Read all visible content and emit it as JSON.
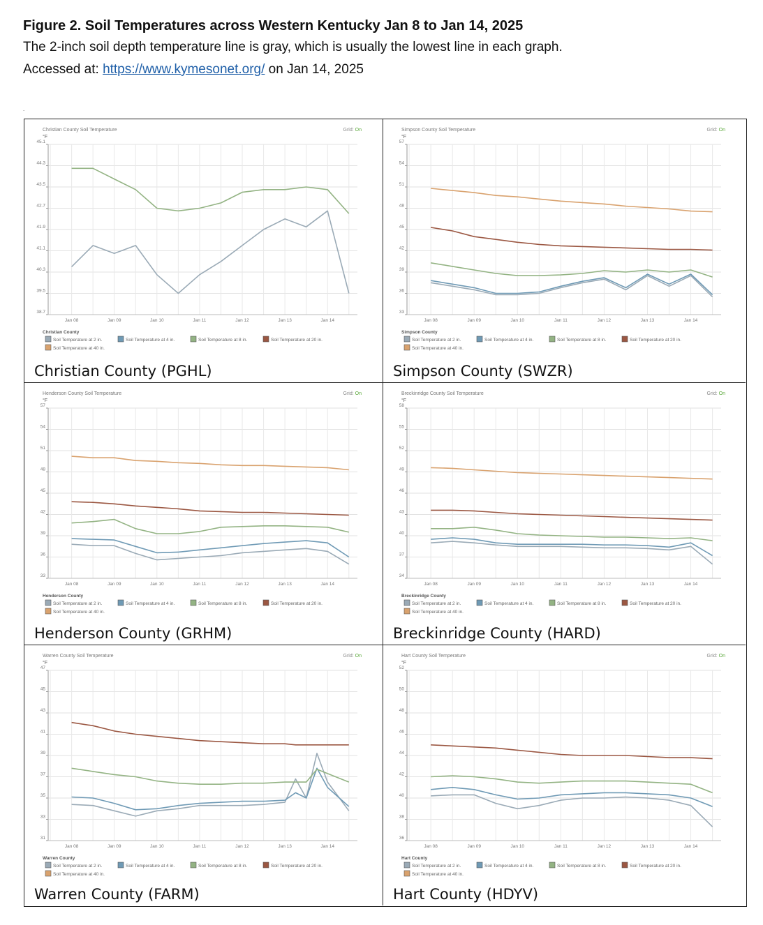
{
  "header": {
    "title": "Figure 2. Soil Temperatures across Western Kentucky Jan 8 to Jan 14, 2025",
    "description": "The 2-inch soil depth temperature line is gray, which is usually the lowest line in each graph.",
    "accessed_prefix": "Accessed at: ",
    "accessed_link": "https://www.kymesonet.org/",
    "accessed_suffix": " on Jan 14, 2025"
  },
  "stray_mark": ".",
  "legend_labels": [
    "Soil Temperature at 2 in.",
    "Soil Temperature at 4 in.",
    "Soil Temperature at 8 in.",
    "Soil Temperature at 20 in.",
    "Soil Temperature at 40 in."
  ],
  "series_colors": {
    "s2": "#9aaab6",
    "s4": "#6f9ab5",
    "s8": "#93b383",
    "s20": "#9b5742",
    "s40": "#d9a26e"
  },
  "grid_toggle": {
    "label": "Grid: ",
    "value": "On"
  },
  "unit_label": "°F",
  "x_ticks": [
    "Jan 08",
    "Jan 09",
    "Jan 10",
    "Jan 11",
    "Jan 12",
    "Jan 13",
    "Jan 14"
  ],
  "chart_data": [
    {
      "type": "line",
      "title": "Christian County Soil Temperature",
      "legend_title": "Christian County",
      "caption": "Christian County (PGHL)",
      "ylabel": "°F",
      "ylim": [
        38.7,
        45.1
      ],
      "yticks": [
        "45.1",
        "44.3",
        "43.5",
        "42.7",
        "41.9",
        "41.1",
        "40.3",
        "39.5",
        "38.7"
      ],
      "x": [
        0,
        0.5,
        1,
        1.5,
        2,
        2.5,
        3,
        3.5,
        4,
        4.5,
        5,
        5.5,
        6,
        6.5
      ],
      "series": [
        {
          "name": "Soil Temperature at 2 in.",
          "color_key": "s2",
          "values": [
            40.5,
            41.3,
            41.0,
            41.3,
            40.2,
            39.5,
            40.2,
            40.7,
            41.3,
            41.9,
            42.3,
            42.0,
            42.6,
            39.5
          ]
        },
        {
          "name": "Soil Temperature at 8 in.",
          "color_key": "s8",
          "values": [
            44.2,
            44.2,
            43.8,
            43.4,
            42.7,
            42.6,
            42.7,
            42.9,
            43.3,
            43.4,
            43.4,
            43.5,
            43.4,
            42.5
          ]
        }
      ]
    },
    {
      "type": "line",
      "title": "Simpson County Soil Temperature",
      "legend_title": "Simpson County",
      "caption": "Simpson County (SWZR)",
      "ylabel": "°F",
      "ylim": [
        33,
        57
      ],
      "yticks": [
        "57",
        "54",
        "51",
        "48",
        "45",
        "42",
        "39",
        "36",
        "33"
      ],
      "x": [
        0,
        0.5,
        1,
        1.5,
        2,
        2.5,
        3,
        3.5,
        4,
        4.5,
        5,
        5.5,
        6,
        6.5
      ],
      "series": [
        {
          "name": "Soil Temperature at 2 in.",
          "color_key": "s2",
          "values": [
            37.5,
            37.0,
            36.5,
            35.8,
            35.8,
            36.0,
            36.8,
            37.5,
            38.0,
            36.5,
            38.5,
            37.0,
            38.5,
            35.5
          ]
        },
        {
          "name": "Soil Temperature at 4 in.",
          "color_key": "s4",
          "values": [
            37.8,
            37.3,
            36.8,
            36.0,
            36.0,
            36.2,
            37.0,
            37.7,
            38.2,
            36.8,
            38.7,
            37.3,
            38.7,
            35.8
          ]
        },
        {
          "name": "Soil Temperature at 8 in.",
          "color_key": "s8",
          "values": [
            40.3,
            39.8,
            39.3,
            38.8,
            38.5,
            38.5,
            38.6,
            38.8,
            39.2,
            39.0,
            39.3,
            39.0,
            39.3,
            38.3
          ]
        },
        {
          "name": "Soil Temperature at 20 in.",
          "color_key": "s20",
          "values": [
            45.3,
            44.8,
            44.0,
            43.6,
            43.2,
            42.9,
            42.7,
            42.6,
            42.5,
            42.4,
            42.3,
            42.2,
            42.2,
            42.1
          ]
        },
        {
          "name": "Soil Temperature at 40 in.",
          "color_key": "s40",
          "values": [
            50.8,
            50.5,
            50.2,
            49.8,
            49.6,
            49.3,
            49.0,
            48.8,
            48.6,
            48.3,
            48.1,
            47.9,
            47.6,
            47.5
          ]
        }
      ]
    },
    {
      "type": "line",
      "title": "Henderson County Soil Temperature",
      "legend_title": "Henderson County",
      "caption": "Henderson County (GRHM)",
      "ylabel": "°F",
      "ylim": [
        33,
        57
      ],
      "yticks": [
        "57",
        "54",
        "51",
        "48",
        "45",
        "42",
        "39",
        "36",
        "33"
      ],
      "x": [
        0,
        0.5,
        1,
        1.5,
        2,
        2.5,
        3,
        3.5,
        4,
        4.5,
        5,
        5.5,
        6,
        6.5
      ],
      "series": [
        {
          "name": "Soil Temperature at 2 in.",
          "color_key": "s2",
          "values": [
            37.8,
            37.6,
            37.6,
            36.5,
            35.6,
            35.8,
            36.0,
            36.2,
            36.6,
            36.8,
            37.0,
            37.2,
            36.8,
            35.0
          ]
        },
        {
          "name": "Soil Temperature at 4 in.",
          "color_key": "s4",
          "values": [
            38.6,
            38.5,
            38.4,
            37.5,
            36.6,
            36.7,
            37.0,
            37.3,
            37.6,
            37.9,
            38.1,
            38.3,
            38.0,
            36.0
          ]
        },
        {
          "name": "Soil Temperature at 8 in.",
          "color_key": "s8",
          "values": [
            40.8,
            41.0,
            41.3,
            40.0,
            39.3,
            39.3,
            39.6,
            40.2,
            40.3,
            40.4,
            40.4,
            40.3,
            40.2,
            39.5
          ]
        },
        {
          "name": "Soil Temperature at 20 in.",
          "color_key": "s20",
          "values": [
            43.8,
            43.7,
            43.5,
            43.2,
            43.0,
            42.8,
            42.5,
            42.4,
            42.3,
            42.3,
            42.2,
            42.1,
            42.0,
            41.9
          ]
        },
        {
          "name": "Soil Temperature at 40 in.",
          "color_key": "s40",
          "values": [
            50.2,
            50.0,
            50.0,
            49.6,
            49.5,
            49.3,
            49.2,
            49.0,
            48.9,
            48.9,
            48.8,
            48.7,
            48.6,
            48.3
          ]
        }
      ]
    },
    {
      "type": "line",
      "title": "Breckinridge County Soil Temperature",
      "legend_title": "Breckinridge County",
      "caption": "Breckinridge County (HARD)",
      "ylabel": "°F",
      "ylim": [
        34,
        58
      ],
      "yticks": [
        "58",
        "55",
        "52",
        "49",
        "46",
        "43",
        "40",
        "37",
        "34"
      ],
      "x": [
        0,
        0.5,
        1,
        1.5,
        2,
        2.5,
        3,
        3.5,
        4,
        4.5,
        5,
        5.5,
        6,
        6.5
      ],
      "series": [
        {
          "name": "Soil Temperature at 2 in.",
          "color_key": "s2",
          "values": [
            39.0,
            39.2,
            39.0,
            38.7,
            38.5,
            38.5,
            38.5,
            38.4,
            38.3,
            38.3,
            38.2,
            38.0,
            38.5,
            36.0
          ]
        },
        {
          "name": "Soil Temperature at 4 in.",
          "color_key": "s4",
          "values": [
            39.5,
            39.7,
            39.5,
            39.0,
            38.8,
            38.8,
            38.8,
            38.8,
            38.7,
            38.7,
            38.6,
            38.4,
            39.0,
            37.2
          ]
        },
        {
          "name": "Soil Temperature at 8 in.",
          "color_key": "s8",
          "values": [
            41.0,
            41.0,
            41.2,
            40.8,
            40.3,
            40.1,
            40.0,
            39.9,
            39.8,
            39.8,
            39.7,
            39.6,
            39.7,
            39.3
          ]
        },
        {
          "name": "Soil Temperature at 20 in.",
          "color_key": "s20",
          "values": [
            43.6,
            43.6,
            43.5,
            43.3,
            43.1,
            43.0,
            42.9,
            42.8,
            42.7,
            42.6,
            42.5,
            42.4,
            42.3,
            42.2
          ]
        },
        {
          "name": "Soil Temperature at 40 in.",
          "color_key": "s40",
          "values": [
            49.6,
            49.5,
            49.3,
            49.1,
            48.9,
            48.8,
            48.7,
            48.6,
            48.5,
            48.4,
            48.3,
            48.2,
            48.1,
            48.0
          ]
        }
      ]
    },
    {
      "type": "line",
      "title": "Warren County Soil Temperature",
      "legend_title": "Warren County",
      "caption": "Warren County (FARM)",
      "ylabel": "°F",
      "ylim": [
        31,
        47
      ],
      "yticks": [
        "47",
        "45",
        "43",
        "41",
        "39",
        "37",
        "35",
        "33",
        "31"
      ],
      "x": [
        0,
        0.5,
        1,
        1.5,
        2,
        2.5,
        3,
        3.5,
        4,
        4.5,
        5,
        5.25,
        5.5,
        5.75,
        6,
        6.5
      ],
      "series": [
        {
          "name": "Soil Temperature at 2 in.",
          "color_key": "s2",
          "values": [
            34.4,
            34.3,
            33.8,
            33.3,
            33.8,
            34.0,
            34.3,
            34.3,
            34.3,
            34.4,
            34.6,
            36.8,
            35.0,
            39.2,
            36.5,
            33.8
          ]
        },
        {
          "name": "Soil Temperature at 4 in.",
          "color_key": "s4",
          "values": [
            35.1,
            35.0,
            34.5,
            33.9,
            34.0,
            34.3,
            34.5,
            34.6,
            34.7,
            34.7,
            34.8,
            35.5,
            35.0,
            37.8,
            36.0,
            34.2
          ]
        },
        {
          "name": "Soil Temperature at 8 in.",
          "color_key": "s8",
          "values": [
            37.8,
            37.5,
            37.2,
            37.0,
            36.6,
            36.4,
            36.3,
            36.3,
            36.4,
            36.4,
            36.5,
            36.5,
            36.5,
            37.7,
            37.3,
            36.5
          ]
        },
        {
          "name": "Soil Temperature at 20 in.",
          "color_key": "s20",
          "values": [
            42.1,
            41.8,
            41.3,
            41.0,
            40.8,
            40.6,
            40.4,
            40.3,
            40.2,
            40.1,
            40.1,
            40.0,
            40.0,
            40.0,
            40.0,
            40.0
          ]
        }
      ]
    },
    {
      "type": "line",
      "title": "Hart County Soil Temperature",
      "legend_title": "Hart County",
      "caption": "Hart County (HDYV)",
      "ylabel": "°F",
      "ylim": [
        36,
        52
      ],
      "yticks": [
        "52",
        "50",
        "48",
        "46",
        "44",
        "42",
        "40",
        "38",
        "36"
      ],
      "x": [
        0,
        0.5,
        1,
        1.5,
        2,
        2.5,
        3,
        3.5,
        4,
        4.5,
        5,
        5.5,
        6,
        6.5
      ],
      "series": [
        {
          "name": "Soil Temperature at 2 in.",
          "color_key": "s2",
          "values": [
            40.2,
            40.3,
            40.3,
            39.5,
            39.0,
            39.3,
            39.8,
            40.0,
            40.0,
            40.1,
            40.0,
            39.8,
            39.3,
            37.3
          ]
        },
        {
          "name": "Soil Temperature at 4 in.",
          "color_key": "s4",
          "values": [
            40.8,
            41.0,
            40.8,
            40.3,
            39.9,
            40.0,
            40.3,
            40.4,
            40.5,
            40.5,
            40.4,
            40.3,
            40.0,
            39.2
          ]
        },
        {
          "name": "Soil Temperature at 8 in.",
          "color_key": "s8",
          "values": [
            42.0,
            42.1,
            42.0,
            41.8,
            41.5,
            41.4,
            41.5,
            41.6,
            41.6,
            41.6,
            41.5,
            41.4,
            41.3,
            40.5
          ]
        },
        {
          "name": "Soil Temperature at 20 in.",
          "color_key": "s20",
          "values": [
            45.0,
            44.9,
            44.8,
            44.7,
            44.5,
            44.3,
            44.1,
            44.0,
            44.0,
            44.0,
            43.9,
            43.8,
            43.8,
            43.7
          ]
        }
      ]
    }
  ]
}
